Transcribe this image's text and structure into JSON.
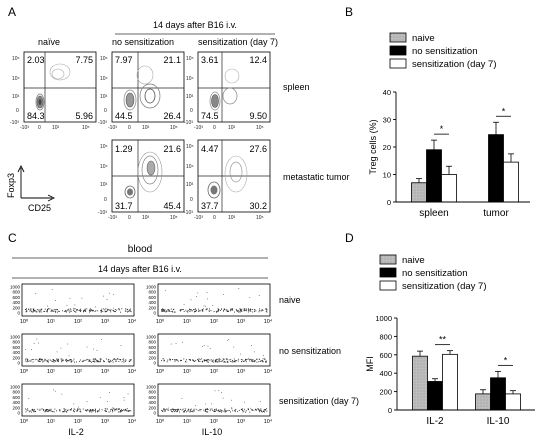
{
  "panels": {
    "A": {
      "letter": "A",
      "col_naive": "naïve",
      "group_header": "14 days after B16 i.v.",
      "col_nosens": "no sensitization",
      "col_sens": "sensitization (day 7)",
      "row_spleen": "spleen",
      "row_tumor": "metastatic tumor",
      "x_axis": "CD25",
      "y_axis": "Foxp3",
      "ticks_x": [
        "-10³",
        "0",
        "10³",
        "10⁵"
      ],
      "ticks_y": [
        "10⁵",
        "10⁴",
        "10³",
        "0",
        "-10³"
      ],
      "quadrants": [
        {
          "id": "spleen-naive",
          "tl": "2.03",
          "tr": "7.75",
          "bl": "84.3",
          "br": "5.96"
        },
        {
          "id": "spleen-nosens",
          "tl": "7.97",
          "tr": "21.1",
          "bl": "44.5",
          "br": "26.4"
        },
        {
          "id": "spleen-sens",
          "tl": "3.61",
          "tr": "12.4",
          "bl": "74.5",
          "br": "9.50"
        },
        {
          "id": "tumor-nosens",
          "tl": "1.29",
          "tr": "21.6",
          "bl": "31.7",
          "br": "45.4"
        },
        {
          "id": "tumor-sens",
          "tl": "4.47",
          "tr": "27.6",
          "bl": "37.7",
          "br": "30.2"
        }
      ]
    },
    "B": {
      "letter": "B"
    },
    "C": {
      "letter": "C",
      "blood": "blood",
      "group_header": "14 days after B16 i.v.",
      "rows": [
        "naive",
        "no sensitization",
        "sensitization (day 7)"
      ],
      "x_labels": [
        "IL-2",
        "IL-10"
      ],
      "y_ticks": [
        "1000",
        "800",
        "600",
        "400",
        "200",
        "0"
      ],
      "x_ticks": [
        "10⁰",
        "10¹",
        "10²",
        "10³",
        "10⁴"
      ]
    },
    "D": {
      "letter": "D"
    }
  },
  "colors": {
    "naive": "#b8b8b8",
    "no_sensitization": "#000000",
    "sensitization": "#ffffff"
  },
  "chart_data": [
    {
      "panel": "B",
      "type": "bar",
      "categories": [
        "spleen",
        "tumor"
      ],
      "ylabel": "Treg cells (%)",
      "ylim": [
        0,
        40
      ],
      "yticks": [
        0,
        10,
        20,
        30,
        40
      ],
      "legend_position": "top",
      "series": [
        {
          "name": "naive",
          "values": [
            7,
            null
          ],
          "err": [
            1.5,
            null
          ]
        },
        {
          "name": "no sensitization",
          "values": [
            19,
            24.5
          ],
          "err": [
            3.5,
            4.5
          ]
        },
        {
          "name": "sensitization (day 7)",
          "values": [
            10,
            14.5
          ],
          "err": [
            3,
            3
          ]
        }
      ],
      "annotations": [
        {
          "category": "spleen",
          "text": "*"
        },
        {
          "category": "tumor",
          "text": "*"
        }
      ]
    },
    {
      "panel": "D",
      "type": "bar",
      "categories": [
        "IL-2",
        "IL-10"
      ],
      "ylabel": "MFI",
      "ylim": [
        0,
        1000
      ],
      "yticks": [
        0,
        200,
        400,
        600,
        800,
        1000
      ],
      "legend_position": "top",
      "series": [
        {
          "name": "naive",
          "values": [
            585,
            175
          ],
          "err": [
            55,
            45
          ]
        },
        {
          "name": "no sensitization",
          "values": [
            310,
            350
          ],
          "err": [
            30,
            70
          ]
        },
        {
          "name": "sensitization (day 7)",
          "values": [
            605,
            175
          ],
          "err": [
            40,
            35
          ]
        }
      ],
      "annotations": [
        {
          "category": "IL-2",
          "text": "**"
        },
        {
          "category": "IL-10",
          "text": "*"
        }
      ]
    }
  ]
}
